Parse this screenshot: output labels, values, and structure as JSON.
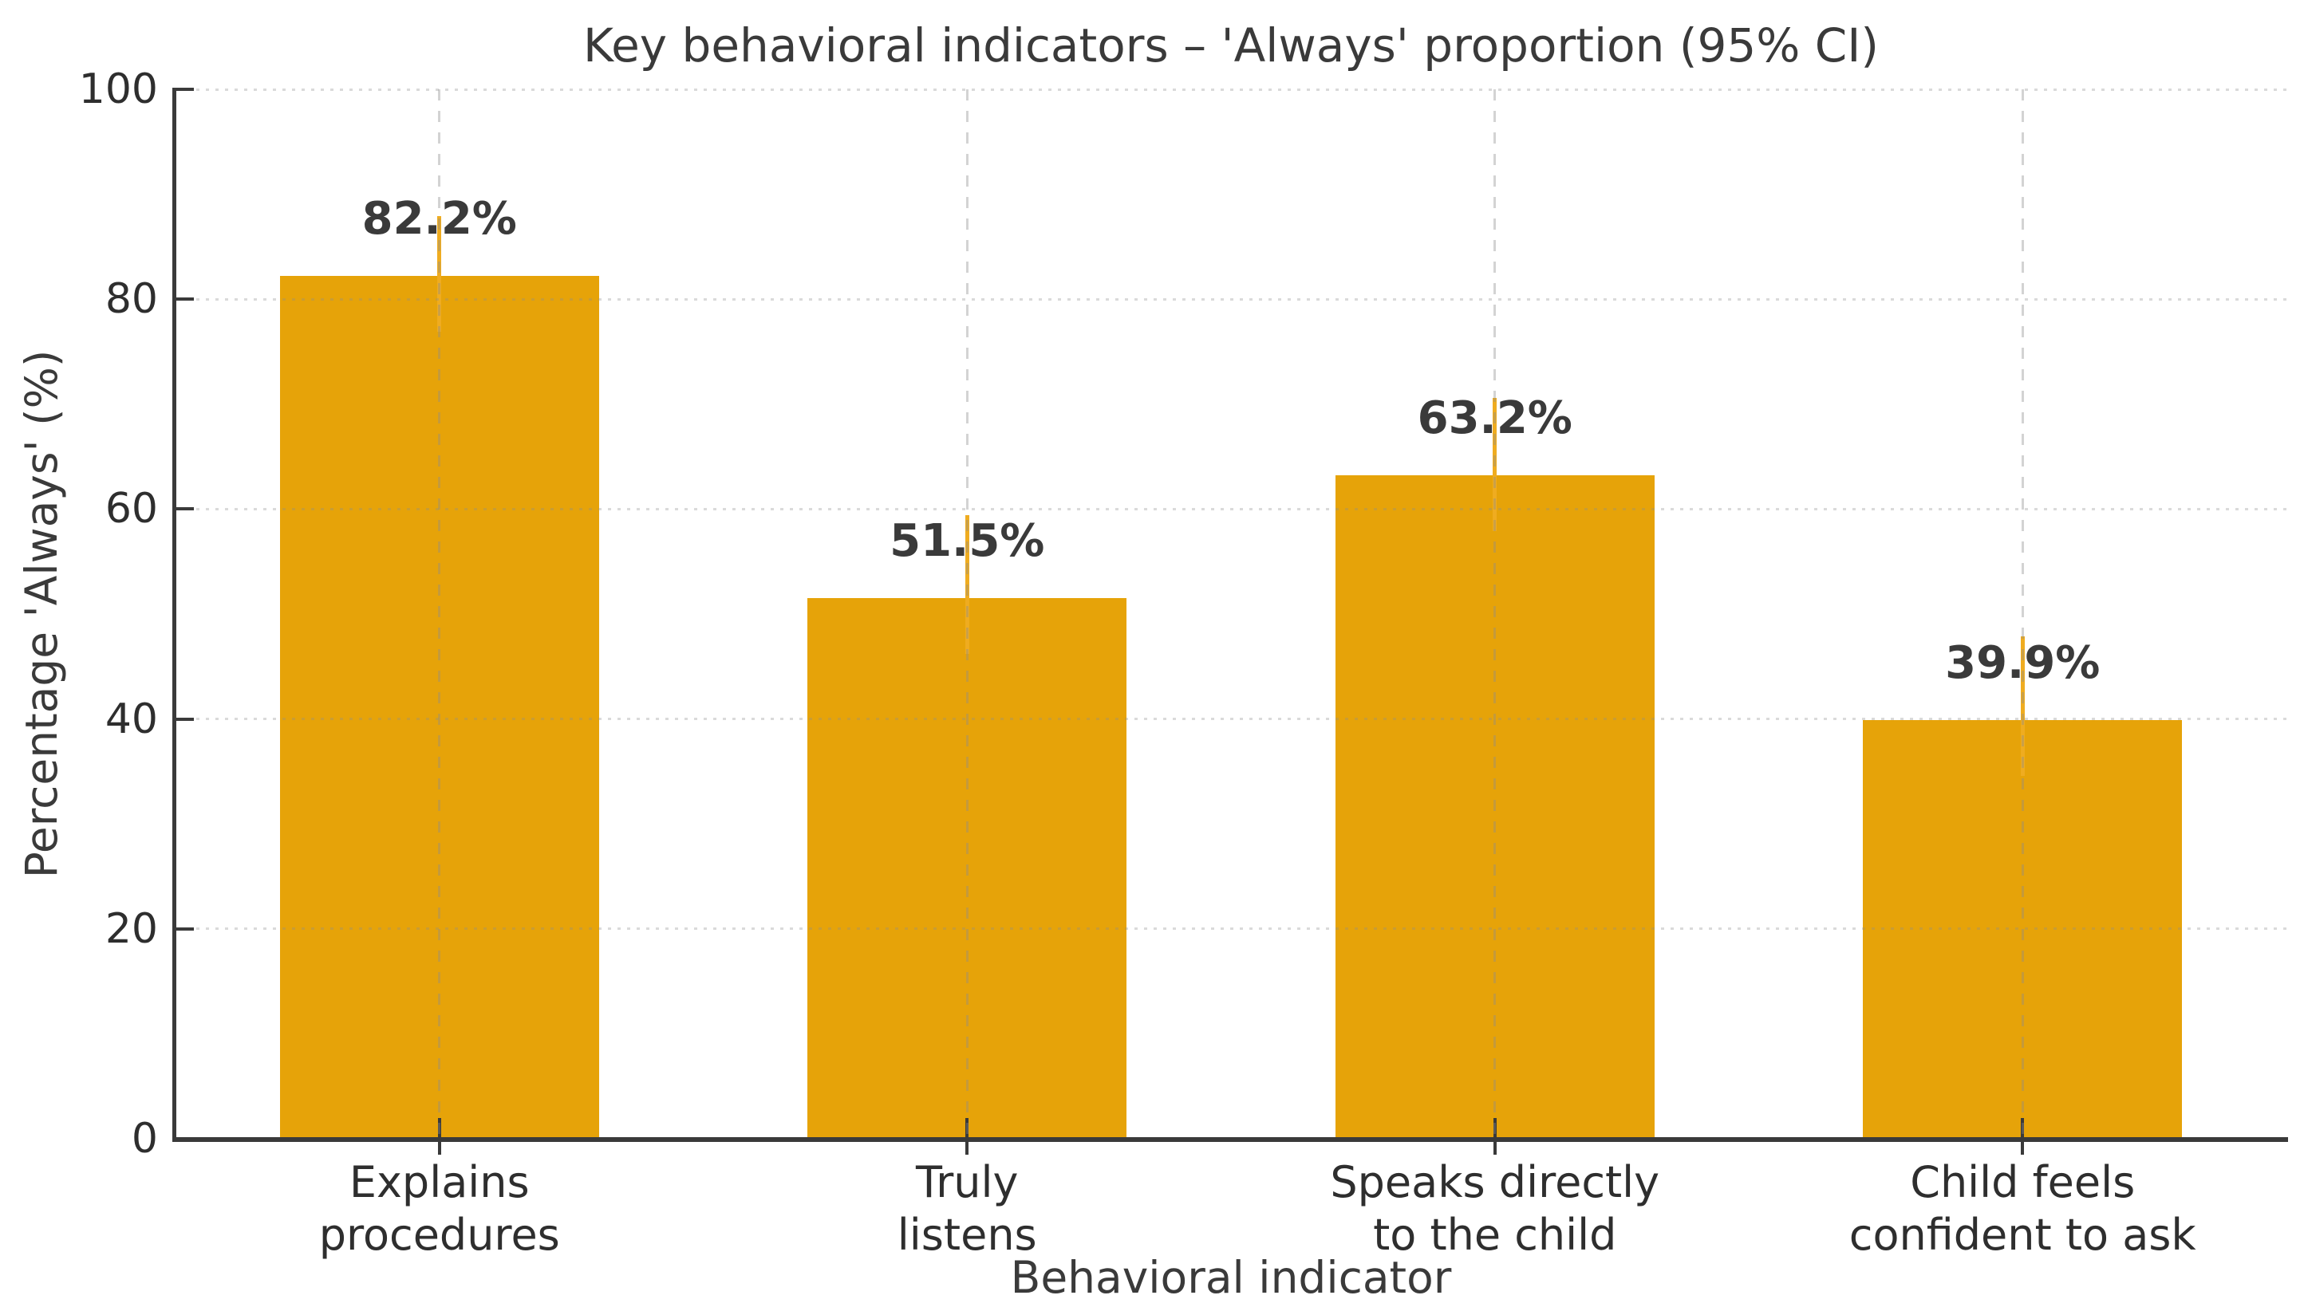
{
  "chart_data": {
    "type": "bar",
    "title": "Key behavioral indicators – 'Always' proportion (95% CI)",
    "xlabel": "Behavioral indicator",
    "ylabel": "Percentage 'Always' (%)",
    "ylim": [
      0,
      100
    ],
    "yticks": [
      0,
      20,
      40,
      60,
      80,
      100
    ],
    "categories": [
      [
        "Explains",
        "procedures"
      ],
      [
        "Truly",
        "listens"
      ],
      [
        "Speaks directly",
        "to the child"
      ],
      [
        "Child feels",
        "confident to ask"
      ]
    ],
    "values": [
      82.2,
      51.5,
      63.2,
      39.9
    ],
    "value_labels": [
      "82.2%",
      "51.5%",
      "63.2%",
      "39.9%"
    ],
    "ci_upper": [
      87.9,
      59.4,
      70.6,
      47.9
    ],
    "bar_color": "#E6A309",
    "error_bar_color": "#EFAC20",
    "text_color": "#3a3a3a",
    "axis_color": "#3a3a3a",
    "grid": true,
    "legend_position": "none",
    "background": "#FFFFFF"
  }
}
